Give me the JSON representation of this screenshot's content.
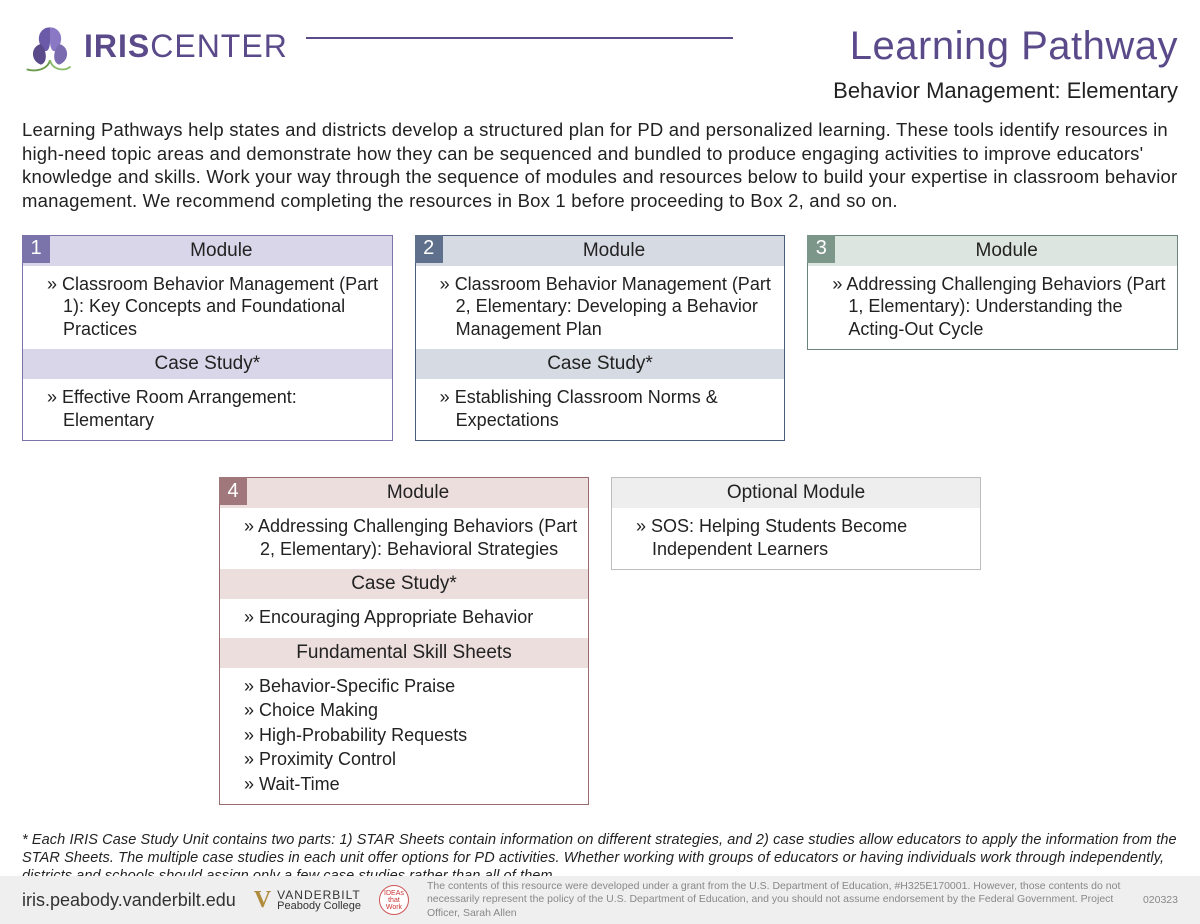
{
  "header": {
    "logo_bold": "IRIS",
    "logo_light": "CENTER",
    "title": "Learning Pathway",
    "subtitle": "Behavior Management: Elementary"
  },
  "intro": "Learning Pathways help states and districts develop a structured plan for PD and personalized learning. These tools identify resources in high-need topic areas and demonstrate how they can be sequenced and bundled to produce engaging activities to improve educators' knowledge and skills. Work your way through the sequence of modules and resources below to build your expertise in classroom behavior management. We recommend completing the resources in Box 1 before proceeding to Box 2, and so on.",
  "cards": {
    "c1": {
      "num": "1",
      "s1_title": "Module",
      "s1_items": [
        "Classroom Behavior Management (Part 1): Key Concepts and Foundational Practices"
      ],
      "s2_title": "Case Study*",
      "s2_items": [
        "Effective Room Arrangement: Elementary"
      ]
    },
    "c2": {
      "num": "2",
      "s1_title": "Module",
      "s1_items": [
        "Classroom Behavior Management (Part 2, Elementary: Developing a Behavior Management Plan"
      ],
      "s2_title": "Case Study*",
      "s2_items": [
        "Establishing Classroom Norms & Expectations"
      ]
    },
    "c3": {
      "num": "3",
      "s1_title": "Module",
      "s1_items": [
        "Addressing Challenging Behaviors (Part 1, Elementary): Understanding the Acting-Out Cycle"
      ]
    },
    "c4": {
      "num": "4",
      "s1_title": "Module",
      "s1_items": [
        "Addressing Challenging Behaviors (Part 2, Elementary): Behavioral Strategies"
      ],
      "s2_title": "Case Study*",
      "s2_items": [
        "Encouraging Appropriate Behavior"
      ],
      "s3_title": "Fundamental Skill Sheets",
      "s3_items": [
        "Behavior-Specific Praise",
        "Choice Making",
        "High-Probability Requests",
        "Proximity Control",
        "Wait-Time"
      ]
    },
    "c5": {
      "s1_title": "Optional Module",
      "s1_items": [
        "SOS: Helping Students Become Independent Learners"
      ]
    }
  },
  "footnote": "* Each IRIS Case Study Unit contains two parts: 1) STAR Sheets contain information on different strategies, and 2) case studies allow educators to apply the information from the STAR Sheets. The multiple case studies in each unit offer options for PD activities. Whether working with groups of educators or having individuals work through independently, districts and schools should assign only a few case studies rather than all of them.",
  "footer": {
    "url": "iris.peabody.vanderbilt.edu",
    "vanderbilt_line1": "VANDERBILT",
    "vanderbilt_line2": "Peabody College",
    "seal": "IDEAs that Work",
    "disclaimer": "The contents of this resource were developed under a grant from the U.S. Department of Education, #H325E170001. However, those contents do not necessarily represent the policy of the U.S. Department of Education, and you should not assume endorsement by the Federal Government. Project Officer, Sarah Allen",
    "code": "020323"
  },
  "colors": {
    "brand_purple": "#5a4a8a",
    "c1_border": "#7a74ab",
    "c1_head": "#d8d6e8",
    "c2_border": "#4a5d7a",
    "c2_head": "#d6dbe3",
    "c3_border": "#6b8378",
    "c3_head": "#dde5e0",
    "c4_border": "#9a6a6e",
    "c4_head": "#ecdedd",
    "c5_border": "#bdbdbd",
    "c5_head": "#eeeeee",
    "footer_bg": "#efefef"
  }
}
